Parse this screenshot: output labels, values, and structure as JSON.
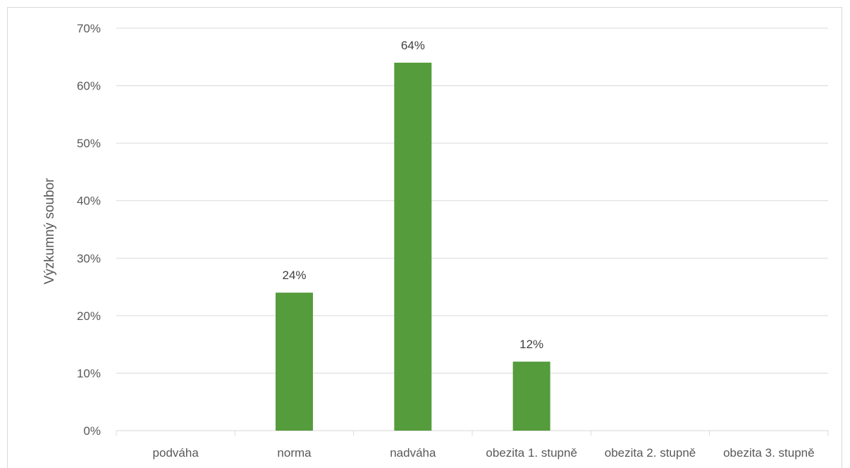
{
  "chart_data": {
    "type": "bar",
    "categories": [
      "podváha",
      "norma",
      "nadváha",
      "obezita 1. stupně",
      "obezita 2. stupně",
      "obezita 3. stupně"
    ],
    "values": [
      0,
      24,
      64,
      12,
      0,
      0
    ],
    "data_labels": [
      "",
      "24%",
      "64%",
      "12%",
      "",
      ""
    ],
    "ylabel": "Výzkumný soubor",
    "y_ticks": [
      "0%",
      "10%",
      "20%",
      "30%",
      "40%",
      "50%",
      "60%",
      "70%"
    ],
    "ylim": [
      0,
      70
    ],
    "grid": true,
    "bar_color": "#559c3c"
  }
}
